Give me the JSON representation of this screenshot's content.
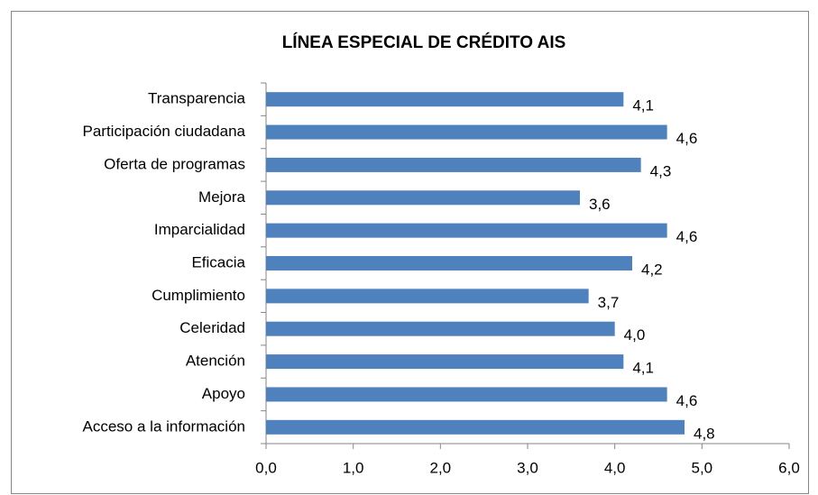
{
  "chart_data": {
    "type": "hbar",
    "title": "LÍNEA ESPECIAL DE CRÉDITO  AIS",
    "categories": [
      "Transparencia",
      "Participación ciudadana",
      "Oferta de programas",
      "Mejora",
      "Imparcialidad",
      "Eficacia",
      "Cumplimiento",
      "Celeridad",
      "Atención",
      "Apoyo",
      "Acceso a la información"
    ],
    "values": [
      4.1,
      4.6,
      4.3,
      3.6,
      4.6,
      4.2,
      3.7,
      4.0,
      4.1,
      4.6,
      4.8
    ],
    "value_labels": [
      "4,1",
      "4,6",
      "4,3",
      "3,6",
      "4,6",
      "4,2",
      "3,7",
      "4,0",
      "4,1",
      "4,6",
      "4,8"
    ],
    "color": "#4f81bd",
    "xlim": [
      0,
      6
    ],
    "xticks": [
      {
        "value": 0,
        "label": "0,0"
      },
      {
        "value": 1,
        "label": "1,0"
      },
      {
        "value": 2,
        "label": "2,0"
      },
      {
        "value": 3,
        "label": "3,0"
      },
      {
        "value": 4,
        "label": "4,0"
      },
      {
        "value": 5,
        "label": "5,0"
      },
      {
        "value": 6,
        "label": "6,0"
      }
    ],
    "grid": false
  }
}
